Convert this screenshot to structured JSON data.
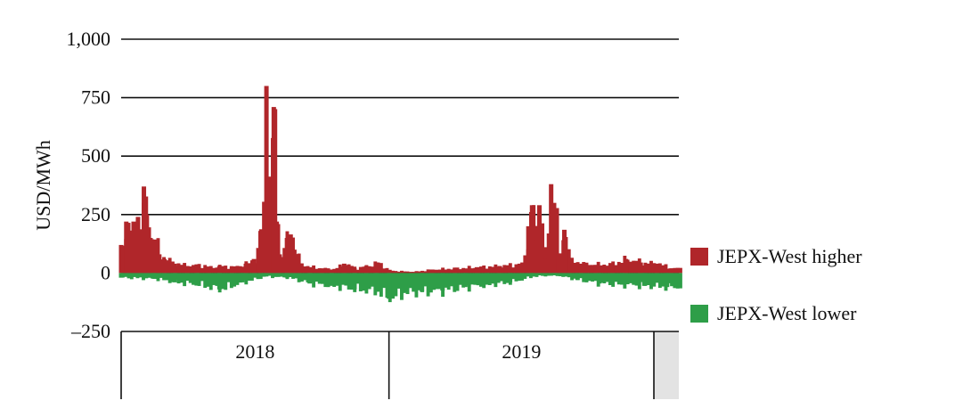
{
  "chart_data": {
    "type": "bar",
    "ylabel": "USD/MWh",
    "ylim": [
      -250,
      1000
    ],
    "yticks": [
      -250,
      0,
      250,
      500,
      750,
      1000
    ],
    "ytick_labels": [
      "–250",
      "0",
      "250",
      "500",
      "750",
      "1,000"
    ],
    "xrange": [
      "2018-01-01",
      "2020-01-31"
    ],
    "x_groups": [
      "2018",
      "2019"
    ],
    "grid": true,
    "legend_position": "right",
    "series": [
      {
        "name": "JEPX-West higher",
        "color": "#b0262a",
        "daily_points": [
          {
            "x": "2018-01-01",
            "y": 120
          },
          {
            "x": "2018-01-08",
            "y": 220
          },
          {
            "x": "2018-01-12",
            "y": 130
          },
          {
            "x": "2018-01-18",
            "y": 220
          },
          {
            "x": "2018-01-24",
            "y": 240
          },
          {
            "x": "2018-01-28",
            "y": 180
          },
          {
            "x": "2018-02-01",
            "y": 370
          },
          {
            "x": "2018-02-05",
            "y": 250
          },
          {
            "x": "2018-02-10",
            "y": 150
          },
          {
            "x": "2018-02-15",
            "y": 140
          },
          {
            "x": "2018-02-22",
            "y": 80
          },
          {
            "x": "2018-03-01",
            "y": 60
          },
          {
            "x": "2018-03-15",
            "y": 40
          },
          {
            "x": "2018-04-01",
            "y": 30
          },
          {
            "x": "2018-04-15",
            "y": 35
          },
          {
            "x": "2018-05-01",
            "y": 25
          },
          {
            "x": "2018-05-15",
            "y": 30
          },
          {
            "x": "2018-06-01",
            "y": 25
          },
          {
            "x": "2018-06-20",
            "y": 40
          },
          {
            "x": "2018-07-01",
            "y": 60
          },
          {
            "x": "2018-07-10",
            "y": 180
          },
          {
            "x": "2018-07-18",
            "y": 800
          },
          {
            "x": "2018-07-22",
            "y": 300
          },
          {
            "x": "2018-07-28",
            "y": 710
          },
          {
            "x": "2018-08-01",
            "y": 220
          },
          {
            "x": "2018-08-05",
            "y": 80
          },
          {
            "x": "2018-08-15",
            "y": 150
          },
          {
            "x": "2018-08-20",
            "y": 165
          },
          {
            "x": "2018-08-25",
            "y": 100
          },
          {
            "x": "2018-09-01",
            "y": 40
          },
          {
            "x": "2018-09-15",
            "y": 25
          },
          {
            "x": "2018-10-01",
            "y": 20
          },
          {
            "x": "2018-10-15",
            "y": 15
          },
          {
            "x": "2018-11-01",
            "y": 40
          },
          {
            "x": "2018-11-15",
            "y": 20
          },
          {
            "x": "2018-12-01",
            "y": 30
          },
          {
            "x": "2018-12-15",
            "y": 45
          },
          {
            "x": "2019-01-01",
            "y": 10
          },
          {
            "x": "2019-02-01",
            "y": 5
          },
          {
            "x": "2019-03-01",
            "y": 15
          },
          {
            "x": "2019-04-01",
            "y": 20
          },
          {
            "x": "2019-05-01",
            "y": 25
          },
          {
            "x": "2019-06-01",
            "y": 30
          },
          {
            "x": "2019-07-01",
            "y": 40
          },
          {
            "x": "2019-07-10",
            "y": 200
          },
          {
            "x": "2019-07-15",
            "y": 290
          },
          {
            "x": "2019-07-20",
            "y": 140
          },
          {
            "x": "2019-07-25",
            "y": 290
          },
          {
            "x": "2019-08-01",
            "y": 60
          },
          {
            "x": "2019-08-10",
            "y": 380
          },
          {
            "x": "2019-08-14",
            "y": 300
          },
          {
            "x": "2019-08-20",
            "y": 80
          },
          {
            "x": "2019-08-28",
            "y": 185
          },
          {
            "x": "2019-09-05",
            "y": 50
          },
          {
            "x": "2019-09-20",
            "y": 40
          },
          {
            "x": "2019-10-10",
            "y": 35
          },
          {
            "x": "2019-11-01",
            "y": 40
          },
          {
            "x": "2019-11-20",
            "y": 60
          },
          {
            "x": "2019-12-10",
            "y": 45
          },
          {
            "x": "2020-01-01",
            "y": 40
          },
          {
            "x": "2020-01-20",
            "y": 20
          }
        ]
      },
      {
        "name": "JEPX-West lower",
        "color": "#2e9e48",
        "daily_points": [
          {
            "x": "2018-01-01",
            "y": -20
          },
          {
            "x": "2018-02-15",
            "y": -25
          },
          {
            "x": "2018-03-15",
            "y": -40
          },
          {
            "x": "2018-04-15",
            "y": -50
          },
          {
            "x": "2018-05-15",
            "y": -70
          },
          {
            "x": "2018-06-15",
            "y": -40
          },
          {
            "x": "2018-07-15",
            "y": -15
          },
          {
            "x": "2018-08-15",
            "y": -20
          },
          {
            "x": "2018-09-15",
            "y": -45
          },
          {
            "x": "2018-10-15",
            "y": -55
          },
          {
            "x": "2018-11-15",
            "y": -70
          },
          {
            "x": "2018-12-15",
            "y": -80
          },
          {
            "x": "2019-01-01",
            "y": -110
          },
          {
            "x": "2019-01-20",
            "y": -85
          },
          {
            "x": "2019-02-15",
            "y": -80
          },
          {
            "x": "2019-03-15",
            "y": -75
          },
          {
            "x": "2019-04-15",
            "y": -60
          },
          {
            "x": "2019-05-15",
            "y": -50
          },
          {
            "x": "2019-06-15",
            "y": -40
          },
          {
            "x": "2019-07-15",
            "y": -15
          },
          {
            "x": "2019-08-15",
            "y": -10
          },
          {
            "x": "2019-09-15",
            "y": -30
          },
          {
            "x": "2019-10-15",
            "y": -45
          },
          {
            "x": "2019-11-15",
            "y": -50
          },
          {
            "x": "2019-12-15",
            "y": -55
          },
          {
            "x": "2020-01-15",
            "y": -60
          }
        ]
      }
    ]
  }
}
